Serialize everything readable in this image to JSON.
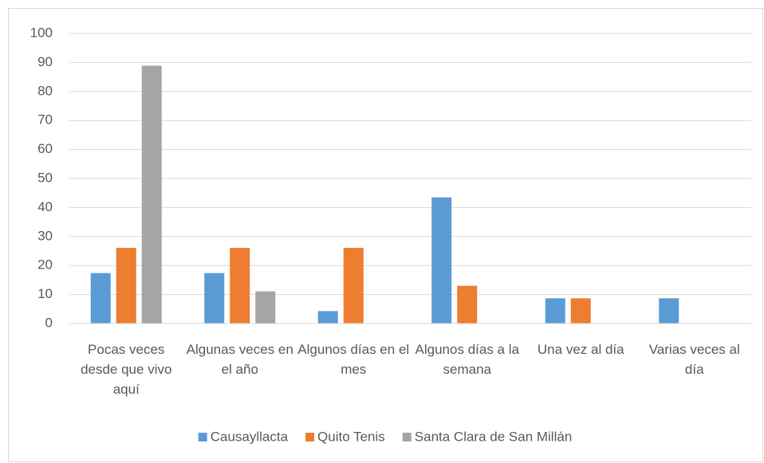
{
  "chart_data": {
    "type": "bar",
    "categories": [
      "Pocas veces desde que vivo aquí",
      "Algunas veces en el año",
      "Algunos días en el mes",
      "Algunos días a la semana",
      "Una vez al día",
      "Varias veces al día"
    ],
    "series": [
      {
        "name": "Causayllacta",
        "color": "#5b9bd5",
        "values": [
          17.4,
          17.4,
          4.3,
          43.5,
          8.7,
          8.7
        ]
      },
      {
        "name": "Quito Tenis",
        "color": "#ed7d31",
        "values": [
          26.1,
          26.1,
          26.1,
          13.0,
          8.7,
          0
        ]
      },
      {
        "name": "Santa Clara de San Millán",
        "color": "#a5a5a5",
        "values": [
          88.9,
          11.1,
          0,
          0,
          0,
          0
        ]
      }
    ],
    "ylim": [
      0,
      100
    ],
    "yticks": [
      0,
      10,
      20,
      30,
      40,
      50,
      60,
      70,
      80,
      90,
      100
    ],
    "grid": true,
    "legend": "bottom"
  }
}
